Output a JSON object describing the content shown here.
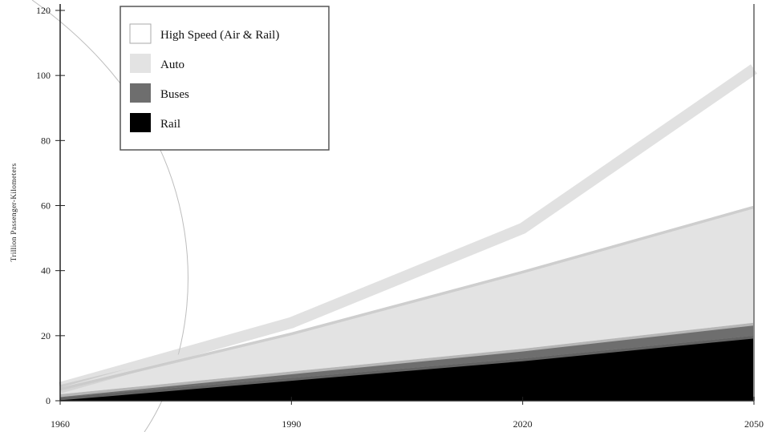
{
  "chart_data": {
    "type": "area",
    "ylabel": "Trillion Passenger-Kilometers",
    "xlim": [
      1960,
      2050
    ],
    "ylim": [
      0,
      120
    ],
    "x_ticks": [
      "1960",
      "1990",
      "2020",
      "2050"
    ],
    "y_ticks": [
      "0",
      "20",
      "40",
      "60",
      "80",
      "100",
      "120"
    ],
    "x": [
      1960,
      1990,
      2020,
      2050
    ],
    "series": [
      {
        "name": "Rail",
        "color": "#000000",
        "values": [
          1,
          7,
          13,
          20
        ]
      },
      {
        "name": "Buses",
        "color": "#6e6e6e",
        "values": [
          1,
          2,
          3,
          4
        ]
      },
      {
        "name": "Auto",
        "color": "#e3e3e3",
        "values": [
          2,
          12,
          24,
          36
        ]
      },
      {
        "name": "High Speed (Air & Rail)",
        "color": "#ffffff",
        "values": [
          0,
          3,
          13,
          42
        ]
      }
    ],
    "legend": [
      "High Speed (Air & Rail)",
      "Auto",
      "Buses",
      "Rail"
    ],
    "legend_position": "top-left",
    "grid": false
  }
}
